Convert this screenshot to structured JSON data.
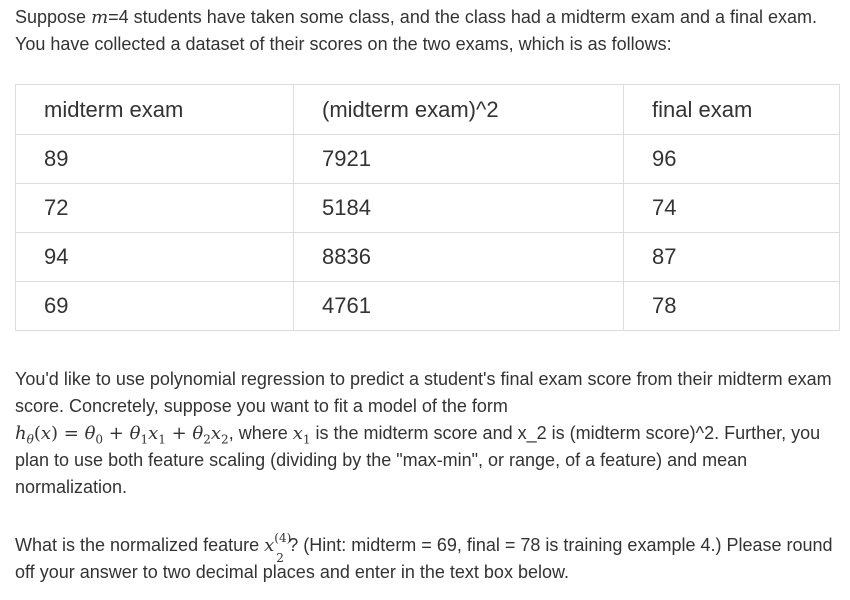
{
  "intro": {
    "text_1": "Suppose ",
    "var_m": "m",
    "text_2": "=4 students have taken some class, and the class had a midterm exam and a final exam. You have collected a dataset of their scores on the two exams, which is as follows:"
  },
  "table": {
    "headers": [
      "midterm exam",
      "(midterm exam)^2",
      "final exam"
    ],
    "rows": [
      [
        "89",
        "7921",
        "96"
      ],
      [
        "72",
        "5184",
        "74"
      ],
      [
        "94",
        "8836",
        "87"
      ],
      [
        "69",
        "4761",
        "78"
      ]
    ]
  },
  "description": {
    "line_1": "You'd like to use polynomial regression to predict a student's final exam score from their midterm exam score. Concretely, suppose you want to fit a model of the form",
    "h": "h",
    "theta": "θ",
    "x": "x",
    "eq": " = ",
    "plus": " + ",
    "sub0": "0",
    "sub1": "1",
    "sub2": "2",
    "where_1": ", where ",
    "where_2": " is the midterm score and x_2 is (midterm score)^2. Further, you plan to use both feature scaling (dividing by the \"max-min\", or range, of a feature) and mean normalization."
  },
  "question": {
    "text_1": "What is the normalized feature ",
    "x": "x",
    "sup": "(4)",
    "sub": "2",
    "text_2": "? (Hint: midterm = 69, final = 78 is training example 4.) Please round off your answer to two decimal places and enter in the text box below."
  }
}
